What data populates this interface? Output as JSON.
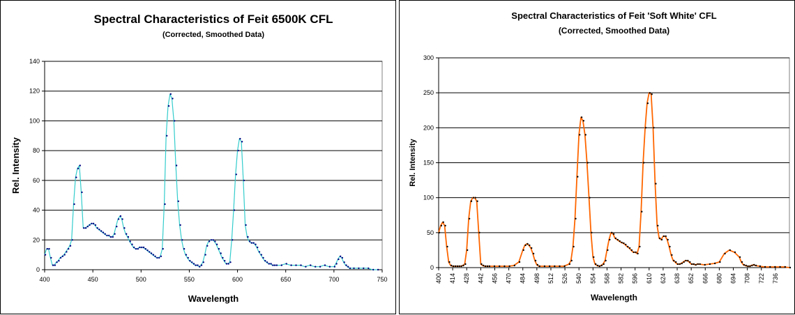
{
  "chart_data": [
    {
      "type": "line",
      "title": "Spectral Characteristics of Feit 6500K CFL",
      "subtitle": "(Corrected, Smoothed Data)",
      "xlabel": "Wavelength",
      "ylabel": "Rel. Intensity",
      "xlim": [
        400,
        750
      ],
      "ylim": [
        0,
        140
      ],
      "xticks": [
        400,
        450,
        500,
        550,
        600,
        650,
        700,
        750
      ],
      "yticks": [
        0,
        20,
        40,
        60,
        80,
        100,
        120,
        140
      ],
      "grid": true,
      "legend": "none",
      "series": [
        {
          "line_color": "#33CCCC",
          "marker_color": "#000080",
          "x": [
            400,
            402,
            404,
            406,
            408,
            410,
            412,
            414,
            416,
            418,
            420,
            422,
            424,
            426,
            428,
            430,
            432,
            434,
            436,
            438,
            440,
            442,
            444,
            446,
            448,
            450,
            452,
            454,
            456,
            458,
            460,
            462,
            464,
            466,
            468,
            470,
            472,
            474,
            476,
            478,
            480,
            482,
            484,
            486,
            488,
            490,
            492,
            494,
            496,
            498,
            500,
            502,
            504,
            506,
            508,
            510,
            512,
            514,
            516,
            518,
            520,
            522,
            524,
            526,
            528,
            530,
            532,
            534,
            536,
            538,
            540,
            542,
            544,
            546,
            548,
            550,
            552,
            554,
            556,
            558,
            560,
            562,
            564,
            566,
            568,
            570,
            572,
            574,
            576,
            578,
            580,
            582,
            584,
            586,
            588,
            590,
            592,
            594,
            596,
            598,
            600,
            602,
            604,
            606,
            608,
            610,
            612,
            614,
            616,
            618,
            620,
            622,
            624,
            626,
            628,
            630,
            632,
            634,
            636,
            638,
            640,
            645,
            650,
            655,
            660,
            665,
            670,
            675,
            680,
            685,
            690,
            695,
            700,
            702,
            704,
            706,
            708,
            710,
            712,
            714,
            716,
            720,
            725,
            730,
            735,
            740,
            745
          ],
          "y": [
            10,
            14,
            14,
            8,
            3,
            3,
            5,
            6,
            8,
            9,
            10,
            12,
            14,
            16,
            20,
            44,
            62,
            68,
            70,
            52,
            28,
            28,
            29,
            30,
            31,
            31,
            30,
            28,
            27,
            26,
            25,
            24,
            23,
            23,
            22,
            22,
            24,
            29,
            34,
            36,
            34,
            28,
            24,
            22,
            19,
            17,
            15,
            14,
            14,
            15,
            15,
            15,
            14,
            13,
            12,
            11,
            10,
            9,
            8,
            8,
            9,
            14,
            44,
            90,
            110,
            118,
            115,
            100,
            70,
            46,
            30,
            20,
            14,
            10,
            8,
            6,
            5,
            4,
            3,
            3,
            2,
            3,
            5,
            10,
            16,
            19,
            20,
            20,
            19,
            17,
            14,
            11,
            8,
            6,
            4,
            4,
            5,
            20,
            40,
            64,
            80,
            88,
            86,
            60,
            30,
            22,
            19,
            18,
            18,
            17,
            15,
            12,
            10,
            8,
            6,
            5,
            4,
            4,
            3,
            3,
            3,
            3,
            4,
            3,
            3,
            3,
            2,
            3,
            2,
            2,
            3,
            2,
            2,
            4,
            7,
            9,
            8,
            5,
            3,
            2,
            1,
            1,
            1,
            1,
            1,
            0,
            0
          ]
        }
      ]
    },
    {
      "type": "line",
      "title": "Spectral Characteristics of Feit 'Soft White' CFL",
      "subtitle": "(Corrected, Smoothed Data)",
      "xlabel": "Wavelength",
      "ylabel": "Rel. Intensity",
      "xlim": [
        400,
        750
      ],
      "ylim": [
        0,
        300
      ],
      "xticks": [
        400,
        414,
        428,
        442,
        456,
        470,
        484,
        498,
        512,
        526,
        540,
        554,
        568,
        582,
        596,
        610,
        624,
        638,
        652,
        666,
        680,
        694,
        708,
        722,
        736
      ],
      "yticks": [
        0,
        50,
        100,
        150,
        200,
        250,
        300
      ],
      "grid": true,
      "legend": "none",
      "series": [
        {
          "line_color": "#FF6600",
          "marker_color": "#000000",
          "x": [
            400,
            402,
            404,
            406,
            408,
            410,
            412,
            414,
            416,
            418,
            420,
            422,
            424,
            426,
            428,
            430,
            432,
            434,
            436,
            438,
            440,
            442,
            444,
            446,
            448,
            450,
            455,
            460,
            465,
            470,
            475,
            480,
            484,
            486,
            488,
            490,
            492,
            494,
            496,
            498,
            500,
            505,
            510,
            515,
            520,
            525,
            530,
            532,
            534,
            536,
            538,
            540,
            542,
            544,
            546,
            548,
            550,
            552,
            554,
            556,
            558,
            560,
            562,
            564,
            566,
            568,
            570,
            572,
            574,
            576,
            578,
            580,
            582,
            584,
            586,
            588,
            590,
            592,
            594,
            596,
            598,
            600,
            602,
            604,
            606,
            608,
            610,
            612,
            614,
            616,
            618,
            620,
            622,
            624,
            626,
            628,
            630,
            632,
            634,
            636,
            638,
            640,
            642,
            644,
            646,
            648,
            650,
            652,
            654,
            656,
            658,
            660,
            665,
            670,
            675,
            680,
            685,
            690,
            695,
            700,
            702,
            704,
            706,
            708,
            710,
            712,
            714,
            716,
            720,
            725,
            730,
            735,
            740,
            745,
            750
          ],
          "y": [
            50,
            60,
            65,
            60,
            30,
            8,
            3,
            2,
            2,
            2,
            2,
            2,
            3,
            5,
            25,
            70,
            95,
            100,
            100,
            95,
            50,
            5,
            3,
            2,
            2,
            2,
            2,
            2,
            2,
            2,
            3,
            8,
            25,
            32,
            34,
            32,
            28,
            20,
            10,
            4,
            2,
            2,
            2,
            2,
            2,
            2,
            5,
            10,
            30,
            70,
            130,
            190,
            215,
            210,
            190,
            150,
            100,
            50,
            15,
            5,
            3,
            2,
            3,
            5,
            10,
            25,
            40,
            50,
            48,
            42,
            40,
            38,
            36,
            35,
            33,
            30,
            28,
            25,
            22,
            22,
            20,
            30,
            80,
            150,
            200,
            235,
            250,
            248,
            200,
            120,
            60,
            42,
            40,
            45,
            45,
            40,
            30,
            18,
            10,
            8,
            5,
            5,
            6,
            8,
            10,
            10,
            8,
            5,
            5,
            4,
            5,
            5,
            4,
            5,
            6,
            8,
            20,
            25,
            22,
            15,
            8,
            4,
            3,
            2,
            2,
            3,
            4,
            3,
            2,
            1,
            1,
            1,
            1,
            1,
            0
          ]
        }
      ]
    }
  ]
}
